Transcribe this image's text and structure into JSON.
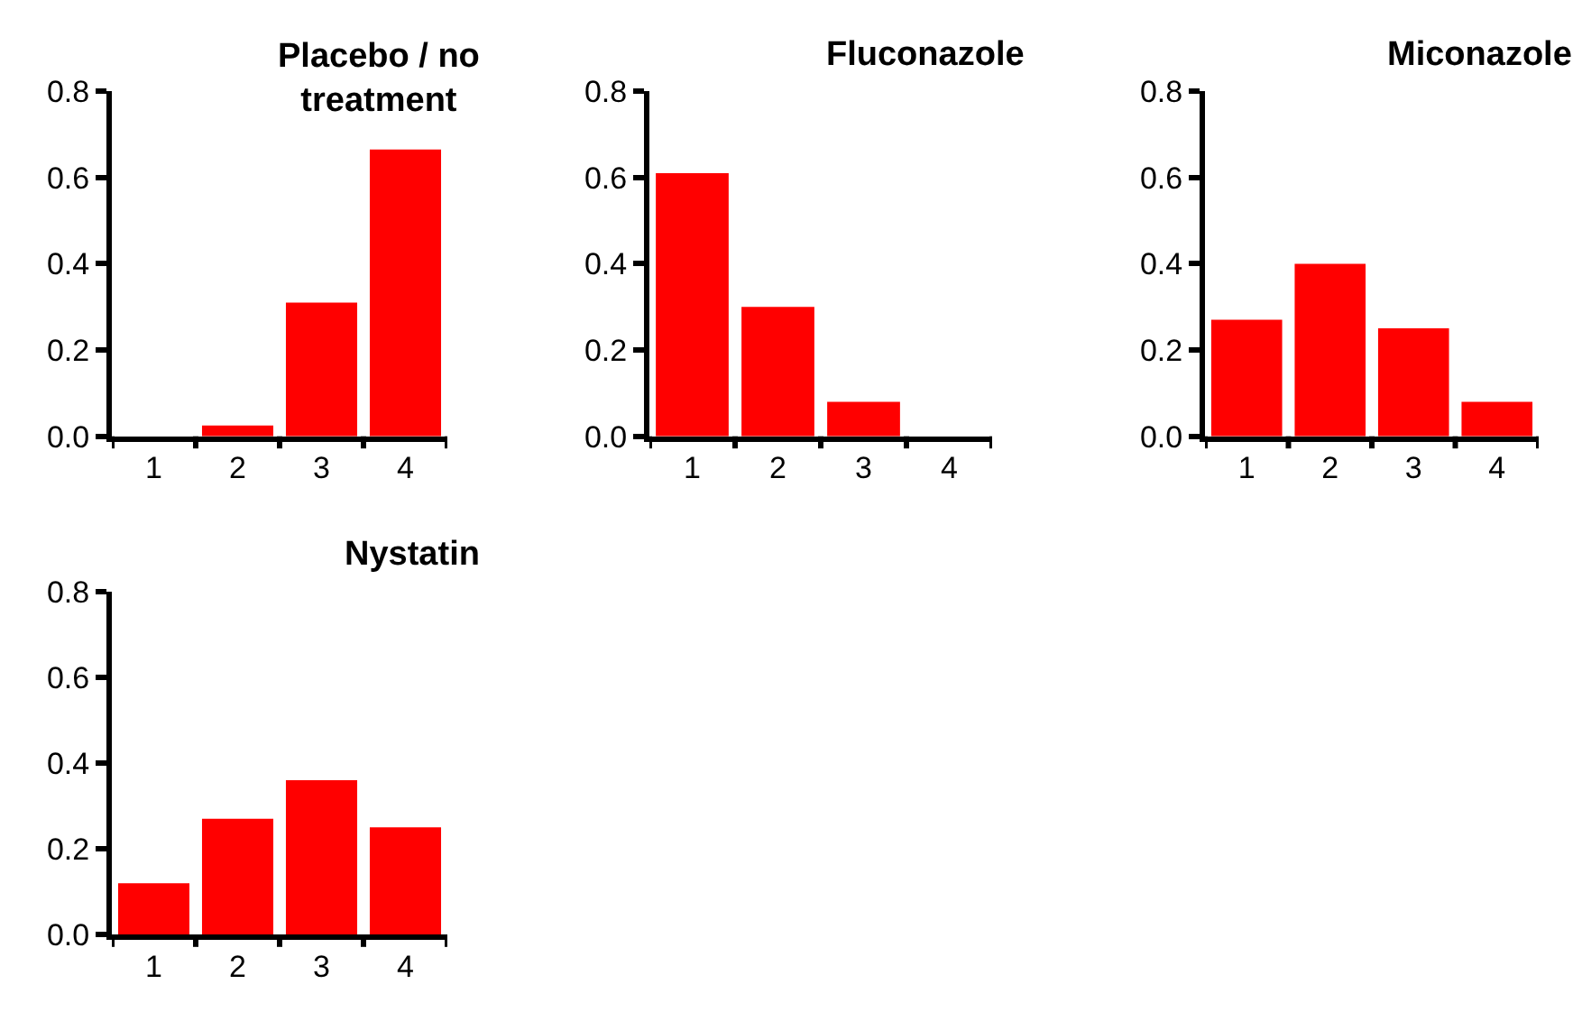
{
  "chart_data": [
    {
      "type": "bar",
      "title": "Placebo / no treatment",
      "categories": [
        "1",
        "2",
        "3",
        "4"
      ],
      "values": [
        0,
        0.025,
        0.31,
        0.665
      ],
      "color": "#ff0000",
      "ylim": [
        0,
        0.8
      ],
      "yticks": [
        {
          "value": 0,
          "label": "0.0"
        },
        {
          "value": 0.2,
          "label": "0.2"
        },
        {
          "value": 0.4,
          "label": "0.4"
        },
        {
          "value": 0.6,
          "label": "0.6"
        },
        {
          "value": 0.8,
          "label": "0.8"
        }
      ]
    },
    {
      "type": "bar",
      "title": "Fluconazole",
      "categories": [
        "1",
        "2",
        "3",
        "4"
      ],
      "values": [
        0.61,
        0.3,
        0.08,
        0
      ],
      "color": "#ff0000",
      "ylim": [
        0,
        0.8
      ],
      "yticks": [
        {
          "value": 0,
          "label": "0.0"
        },
        {
          "value": 0.2,
          "label": "0.2"
        },
        {
          "value": 0.4,
          "label": "0.4"
        },
        {
          "value": 0.6,
          "label": "0.6"
        },
        {
          "value": 0.8,
          "label": "0.8"
        }
      ]
    },
    {
      "type": "bar",
      "title": "Miconazole",
      "categories": [
        "1",
        "2",
        "3",
        "4"
      ],
      "values": [
        0.27,
        0.4,
        0.25,
        0.08
      ],
      "color": "#ff0000",
      "ylim": [
        0,
        0.8
      ],
      "yticks": [
        {
          "value": 0,
          "label": "0.0"
        },
        {
          "value": 0.2,
          "label": "0.2"
        },
        {
          "value": 0.4,
          "label": "0.4"
        },
        {
          "value": 0.6,
          "label": "0.6"
        },
        {
          "value": 0.8,
          "label": "0.8"
        }
      ]
    },
    {
      "type": "bar",
      "title": "Nystatin",
      "categories": [
        "1",
        "2",
        "3",
        "4"
      ],
      "values": [
        0.12,
        0.27,
        0.36,
        0.25
      ],
      "color": "#ff0000",
      "ylim": [
        0,
        0.8
      ],
      "yticks": [
        {
          "value": 0,
          "label": "0.0"
        },
        {
          "value": 0.2,
          "label": "0.2"
        },
        {
          "value": 0.4,
          "label": "0.4"
        },
        {
          "value": 0.6,
          "label": "0.6"
        },
        {
          "value": 0.8,
          "label": "0.8"
        }
      ]
    }
  ]
}
